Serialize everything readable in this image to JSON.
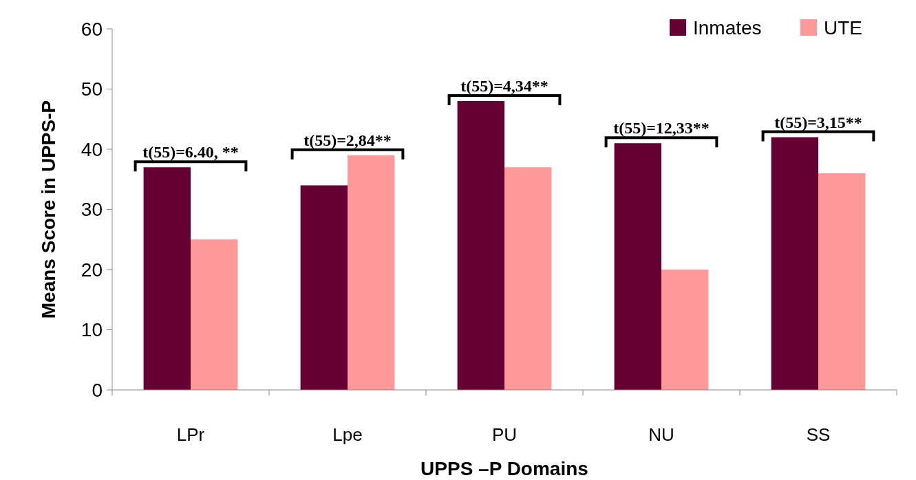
{
  "chart_data": {
    "type": "bar",
    "xlabel": "UPPS –P Domains",
    "ylabel": "Means Score in UPPS-P",
    "categories": [
      "LPr",
      "Lpe",
      "PU",
      "NU",
      "SS"
    ],
    "series": [
      {
        "name": "Inmates",
        "color": "#660033",
        "values": [
          37,
          34,
          48,
          41,
          42
        ]
      },
      {
        "name": "UTE",
        "color": "#ff9999",
        "values": [
          25,
          39,
          37,
          20,
          36
        ]
      }
    ],
    "ylim": [
      0,
      60
    ],
    "yticks": [
      0,
      10,
      20,
      30,
      40,
      50,
      60
    ],
    "legend": "top right",
    "annotations": [
      "t(55)=6.40, **",
      "t(55)=2,84**",
      "t(55)=4,34**",
      "t(55)=12,33**",
      "t(55)=3,15**"
    ]
  }
}
